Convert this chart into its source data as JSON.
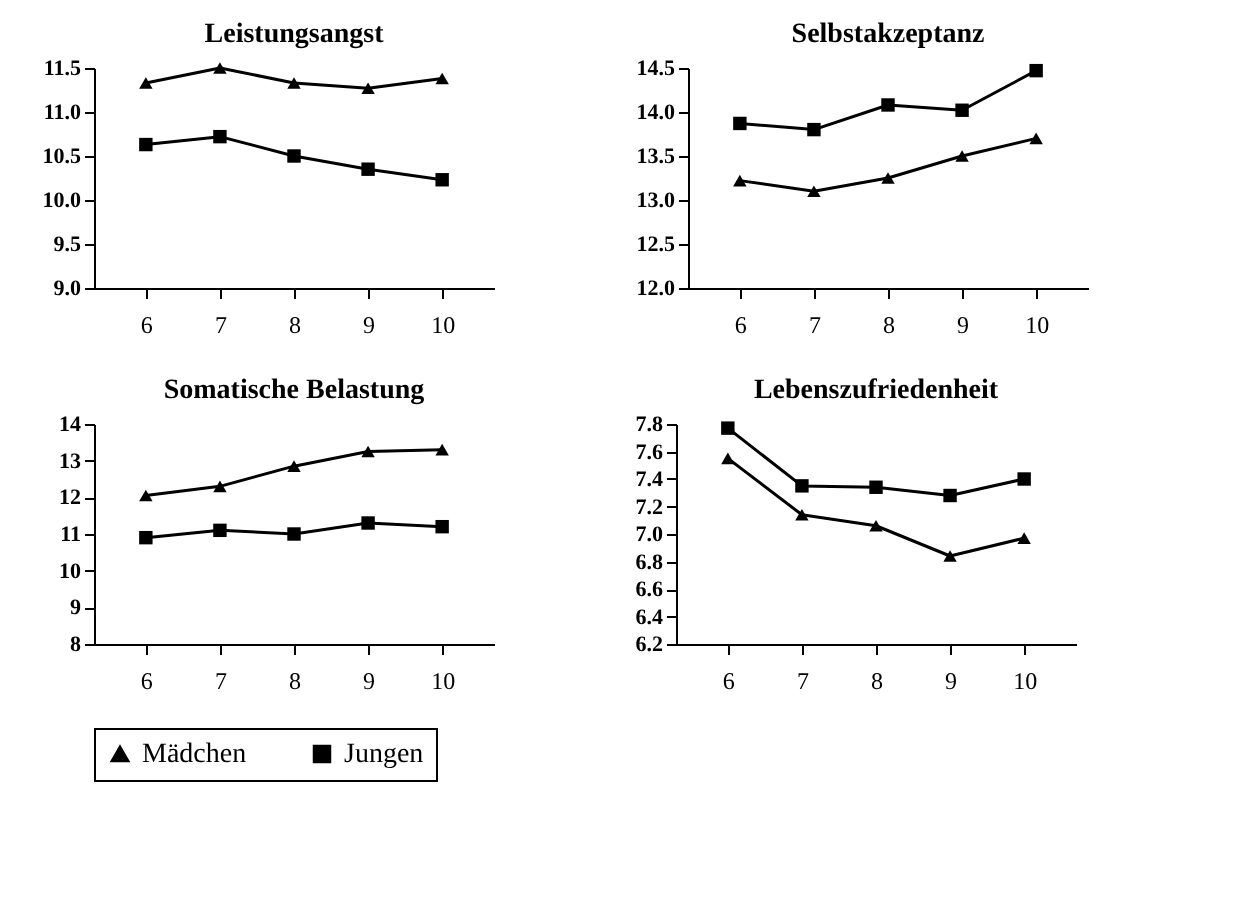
{
  "chart_data": [
    {
      "type": "line",
      "title": "Leistungsangst",
      "categories": [
        "6",
        "7",
        "8",
        "9",
        "10"
      ],
      "ylim": [
        9.0,
        11.5
      ],
      "yticks": [
        {
          "value": 9.0,
          "label": "9.0"
        },
        9.5,
        {
          "value": 10.0,
          "label": "10.0"
        },
        10.5,
        {
          "value": 11.0,
          "label": "11.0"
        },
        11.5
      ],
      "legend": "bottom",
      "grid": false,
      "series": [
        {
          "name": "Mädchen",
          "color": "#000000",
          "marker": "triangle",
          "values": [
            11.33,
            11.5,
            11.33,
            11.27,
            11.38
          ]
        },
        {
          "name": "Jungen",
          "color": "#000000",
          "marker": "square",
          "values": [
            10.63,
            10.72,
            10.5,
            10.35,
            10.23
          ]
        }
      ]
    },
    {
      "type": "line",
      "title": "Selbstakzeptanz",
      "categories": [
        "6",
        "7",
        "8",
        "9",
        "10"
      ],
      "ylim": [
        12.0,
        14.5
      ],
      "yticks": [
        {
          "value": 12.0,
          "label": "12.0"
        },
        12.5,
        {
          "value": 13.0,
          "label": "13.0"
        },
        13.5,
        {
          "value": 14.0,
          "label": "14.0"
        },
        14.5
      ],
      "legend": "bottom",
      "grid": false,
      "series": [
        {
          "name": "Mädchen",
          "color": "#000000",
          "marker": "triangle",
          "values": [
            13.22,
            13.1,
            13.25,
            13.5,
            13.7
          ]
        },
        {
          "name": "Jungen",
          "color": "#000000",
          "marker": "square",
          "values": [
            13.87,
            13.8,
            14.08,
            14.02,
            14.47
          ]
        }
      ]
    },
    {
      "type": "line",
      "title": "Somatische Belastung",
      "categories": [
        "6",
        "7",
        "8",
        "9",
        "10"
      ],
      "ylim": [
        8,
        14
      ],
      "yticks": [
        8,
        9,
        10,
        11,
        12,
        13,
        14
      ],
      "legend": "bottom",
      "grid": false,
      "series": [
        {
          "name": "Mädchen",
          "color": "#000000",
          "marker": "triangle",
          "values": [
            12.05,
            12.3,
            12.85,
            13.25,
            13.3
          ]
        },
        {
          "name": "Jungen",
          "color": "#000000",
          "marker": "square",
          "values": [
            10.9,
            11.1,
            11.0,
            11.3,
            11.2
          ]
        }
      ]
    },
    {
      "type": "line",
      "title": "Lebenszufriedenheit",
      "categories": [
        "6",
        "7",
        "8",
        "9",
        "10"
      ],
      "ylim": [
        6.2,
        7.8
      ],
      "yticks": [
        6.2,
        6.4,
        6.6,
        6.8,
        {
          "value": 7.0,
          "label": "7.0"
        },
        7.2,
        7.4,
        7.6,
        7.8
      ],
      "legend": "bottom",
      "grid": false,
      "series": [
        {
          "name": "Mädchen",
          "color": "#000000",
          "marker": "triangle",
          "values": [
            7.55,
            7.14,
            7.06,
            6.84,
            6.97
          ]
        },
        {
          "name": "Jungen",
          "color": "#000000",
          "marker": "square",
          "values": [
            7.77,
            7.35,
            7.34,
            7.28,
            7.4
          ]
        }
      ]
    }
  ]
}
